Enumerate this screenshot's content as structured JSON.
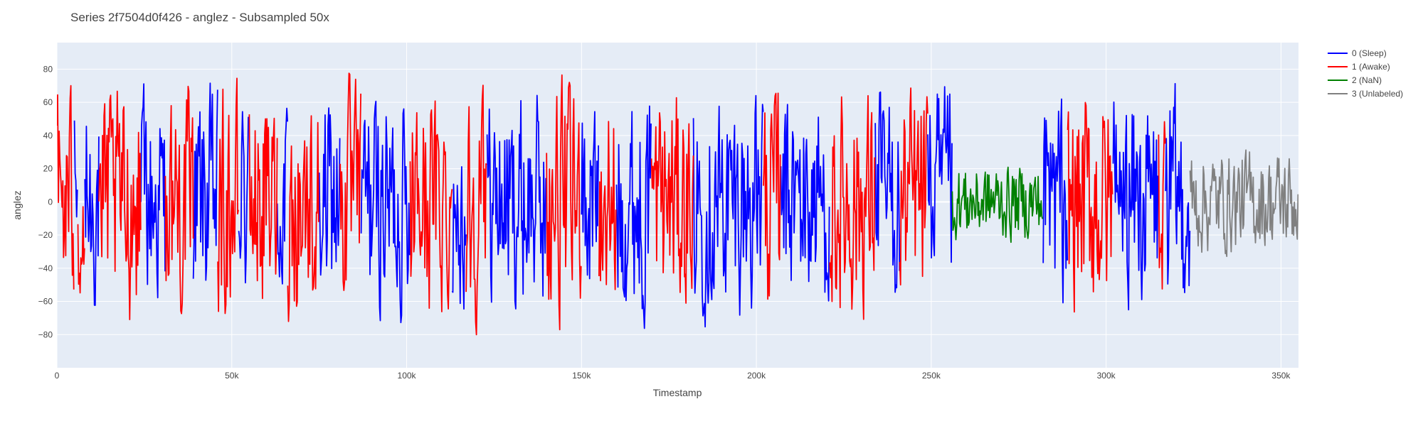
{
  "chart_data": {
    "type": "line",
    "title": "Series 2f7504d0f426 - anglez - Subsampled 50x",
    "xlabel": "Timestamp",
    "ylabel": "anglez",
    "xlim": [
      0,
      355000
    ],
    "ylim": [
      -100,
      96
    ],
    "x_ticks": [
      0,
      50000,
      100000,
      150000,
      200000,
      250000,
      300000,
      350000
    ],
    "x_tick_labels": [
      "0",
      "50k",
      "100k",
      "150k",
      "200k",
      "250k",
      "300k",
      "350k"
    ],
    "y_ticks": [
      -80,
      -60,
      -40,
      -20,
      0,
      20,
      40,
      60,
      80
    ],
    "y_tick_labels": [
      "−80",
      "−60",
      "−40",
      "−20",
      "0",
      "20",
      "40",
      "60",
      "80"
    ],
    "grid": true,
    "legend_position": "top-right",
    "series": [
      {
        "name": "0 (Sleep)",
        "color": "#0000ff",
        "segments": [
          [
            5000,
            6000
          ],
          [
            8000,
            12000
          ],
          [
            24000,
            31000
          ],
          [
            39000,
            46000
          ],
          [
            52000,
            55000
          ],
          [
            63000,
            66000
          ],
          [
            75000,
            81000
          ],
          [
            87000,
            101000
          ],
          [
            113000,
            117000
          ],
          [
            123000,
            140000
          ],
          [
            150000,
            155000
          ],
          [
            160000,
            170000
          ],
          [
            182000,
            202000
          ],
          [
            207000,
            221000
          ],
          [
            234000,
            241000
          ],
          [
            249000,
            256000
          ],
          [
            282000,
            289000
          ],
          [
            302000,
            315000
          ],
          [
            317000,
            324000
          ]
        ],
        "amplitude": 85
      },
      {
        "name": "1 (Awake)",
        "color": "#ff0000",
        "segments": [
          [
            0,
            5000
          ],
          [
            6000,
            8000
          ],
          [
            12000,
            24000
          ],
          [
            31000,
            39000
          ],
          [
            46000,
            52000
          ],
          [
            55000,
            63000
          ],
          [
            66000,
            75000
          ],
          [
            81000,
            87000
          ],
          [
            101000,
            113000
          ],
          [
            117000,
            123000
          ],
          [
            140000,
            150000
          ],
          [
            155000,
            160000
          ],
          [
            170000,
            182000
          ],
          [
            202000,
            207000
          ],
          [
            221000,
            234000
          ],
          [
            241000,
            249000
          ],
          [
            289000,
            302000
          ],
          [
            315000,
            317000
          ]
        ],
        "amplitude": 88
      },
      {
        "name": "2 (NaN)",
        "color": "#008000",
        "segments": [
          [
            256000,
            282000
          ]
        ],
        "amplitude": 30
      },
      {
        "name": "3 (Unlabeled)",
        "color": "#808080",
        "segments": [
          [
            324000,
            355000
          ]
        ],
        "amplitude": 40
      }
    ]
  }
}
